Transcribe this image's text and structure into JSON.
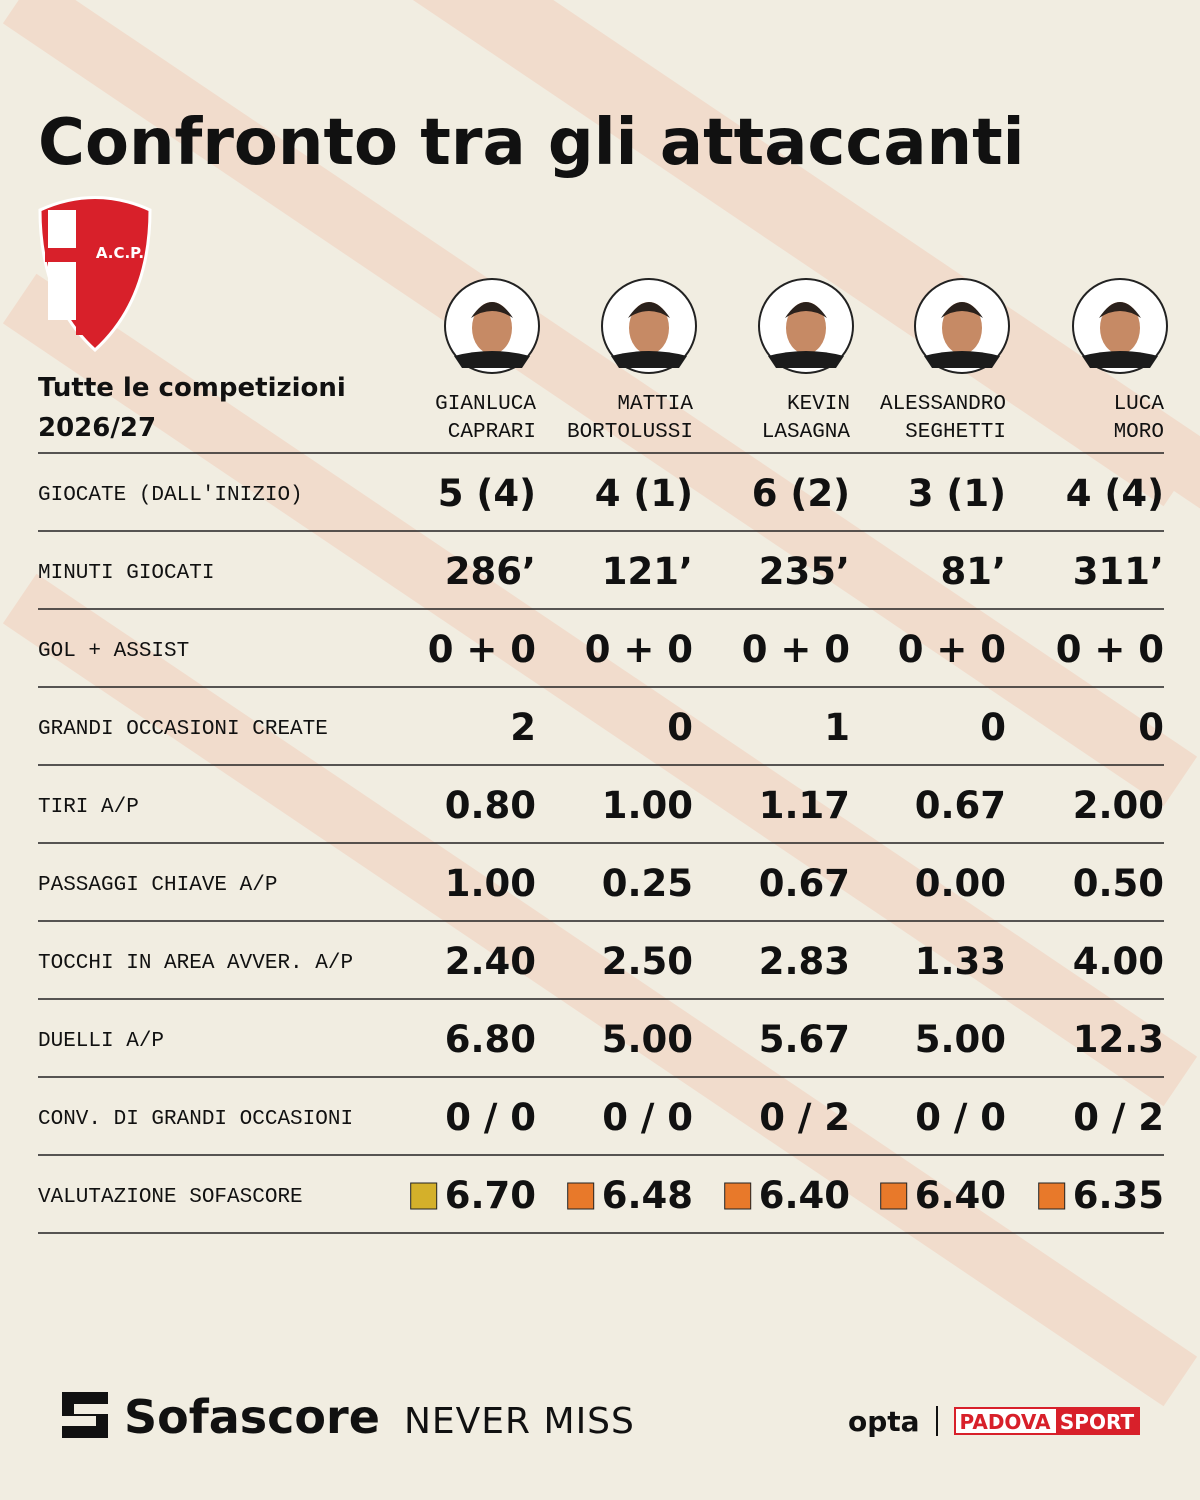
{
  "header": {
    "title": "Confronto tra gli attaccanti",
    "crest_text": "A.C.P.",
    "subtitle": [
      "Tutte le competizioni",
      "2026/27"
    ]
  },
  "players": [
    {
      "first": "GIANLUCA",
      "last": "CAPRARI"
    },
    {
      "first": "MATTIA",
      "last": "BORTOLUSSI"
    },
    {
      "first": "KEVIN",
      "last": "LASAGNA"
    },
    {
      "first": "ALESSANDRO",
      "last": "SEGHETTI"
    },
    {
      "first": "LUCA",
      "last": "MORO"
    }
  ],
  "table": {
    "rows": [
      {
        "label": "GIOCATE (DALL'INIZIO)",
        "values": [
          "5 (4)",
          "4 (1)",
          "6 (2)",
          "3 (1)",
          "4 (4)"
        ]
      },
      {
        "label": "MINUTI GIOCATI",
        "values": [
          "286’",
          "121’",
          "235’",
          "81’",
          "311’"
        ]
      },
      {
        "label": "GOL + ASSIST",
        "values": [
          "0 + 0",
          "0 + 0",
          "0 + 0",
          "0 + 0",
          "0 + 0"
        ]
      },
      {
        "label": "GRANDI OCCASIONI CREATE",
        "values": [
          "2",
          "0",
          "1",
          "0",
          "0"
        ]
      },
      {
        "label": "TIRI A/P",
        "values": [
          "0.80",
          "1.00",
          "1.17",
          "0.67",
          "2.00"
        ]
      },
      {
        "label": "PASSAGGI CHIAVE A/P",
        "values": [
          "1.00",
          "0.25",
          "0.67",
          "0.00",
          "0.50"
        ]
      },
      {
        "label": "TOCCHI IN AREA AVVER. A/P",
        "values": [
          "2.40",
          "2.50",
          "2.83",
          "1.33",
          "4.00"
        ]
      },
      {
        "label": "DUELLI A/P",
        "values": [
          "6.80",
          "5.00",
          "5.67",
          "5.00",
          "12.3"
        ]
      },
      {
        "label": "CONV. DI GRANDI OCCASIONI",
        "values": [
          "0 / 0",
          "0 / 0",
          "0 / 2",
          "0 / 0",
          "0 / 2"
        ]
      },
      {
        "label": "VALUTAZIONE SOFASCORE",
        "values": [
          "6.70",
          "6.48",
          "6.40",
          "6.40",
          "6.35"
        ],
        "badge_colors": [
          "#d4b02a",
          "#e8792a",
          "#e8792a",
          "#e8792a",
          "#e8792a"
        ]
      }
    ]
  },
  "footer": {
    "brand": "Sofascore",
    "tagline": "NEVER MISS",
    "opta": "opta",
    "partner": [
      "PADOVA",
      "SPORT"
    ]
  }
}
